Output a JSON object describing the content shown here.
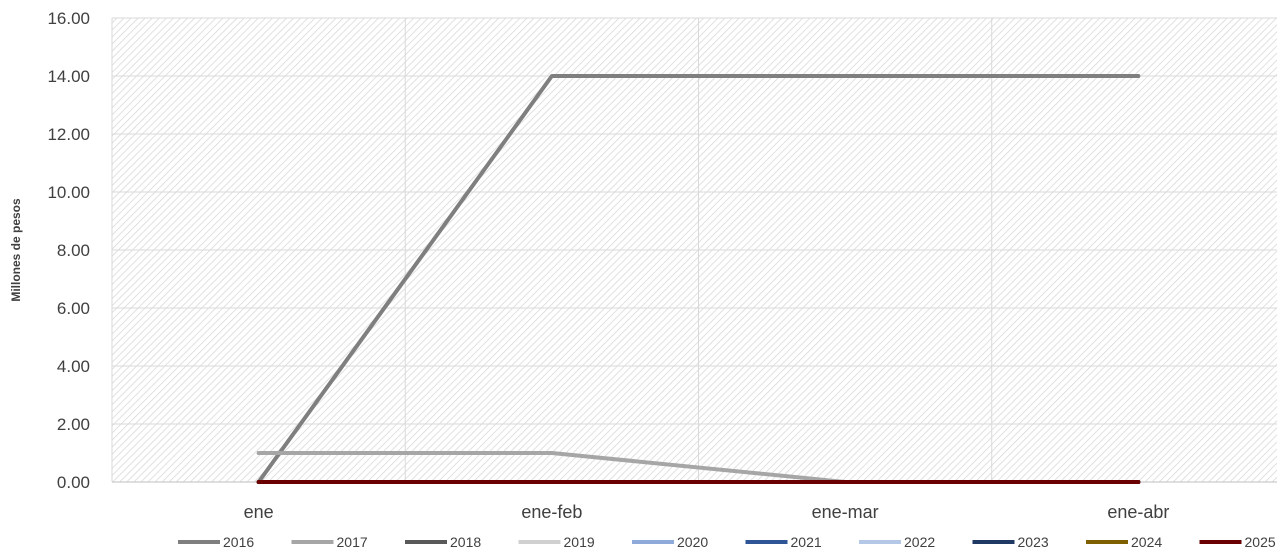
{
  "chart_data": {
    "type": "line",
    "title": "",
    "xlabel": "",
    "ylabel": "Millones de pesos",
    "categories": [
      "ene",
      "ene-feb",
      "ene-mar",
      "ene-abr"
    ],
    "ylim": [
      0,
      16
    ],
    "yticks": [
      "0.00",
      "2.00",
      "4.00",
      "6.00",
      "8.00",
      "10.00",
      "12.00",
      "14.00",
      "16.00"
    ],
    "grid": true,
    "legend_position": "bottom",
    "series": [
      {
        "name": "2016",
        "color": "#7f7f7f",
        "values": [
          0,
          14,
          14,
          14
        ]
      },
      {
        "name": "2017",
        "color": "#a6a6a6",
        "values": [
          1,
          1,
          0,
          0
        ]
      },
      {
        "name": "2018",
        "color": "#595959",
        "values": [
          0,
          0,
          0,
          0
        ]
      },
      {
        "name": "2019",
        "color": "#d0d0d0",
        "values": [
          0,
          0,
          0,
          0
        ]
      },
      {
        "name": "2020",
        "color": "#8eaadb",
        "values": [
          0,
          0,
          0,
          0
        ]
      },
      {
        "name": "2021",
        "color": "#2f5597",
        "values": [
          0,
          0,
          0,
          0
        ]
      },
      {
        "name": "2022",
        "color": "#b4c7e7",
        "values": [
          0,
          0,
          0,
          0
        ]
      },
      {
        "name": "2023",
        "color": "#1f3864",
        "values": [
          0,
          0,
          0,
          0
        ]
      },
      {
        "name": "2024",
        "color": "#7f6000",
        "values": [
          0,
          0,
          0,
          0
        ]
      },
      {
        "name": "2025",
        "color": "#6b0000",
        "values": [
          0,
          0,
          0,
          0
        ]
      }
    ]
  }
}
